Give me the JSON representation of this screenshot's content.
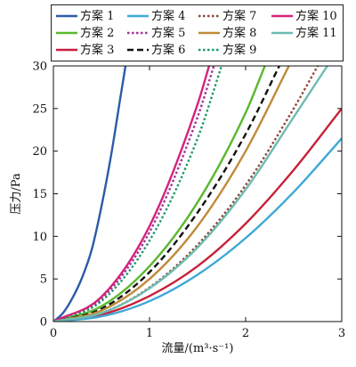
{
  "chart_data": {
    "type": "line",
    "xlabel": "流量/(m³·s⁻¹)",
    "ylabel": "压力/Pa",
    "xlim": [
      0,
      3
    ],
    "ylim": [
      0,
      30
    ],
    "xticks": [
      "0",
      "1",
      "2",
      "3"
    ],
    "yticks": [
      "0",
      "5",
      "10",
      "15",
      "20",
      "25",
      "30"
    ],
    "grid": false,
    "legend_position": "top",
    "series": [
      {
        "name": "方案 1",
        "color": "#2a5ca8",
        "dash": "solid",
        "x": [
          0,
          0.1,
          0.2,
          0.3,
          0.4,
          0.5,
          0.6,
          0.7,
          0.75
        ],
        "y": [
          0,
          1.0,
          2.8,
          5.2,
          8.5,
          13.5,
          19.5,
          26.5,
          30
        ]
      },
      {
        "name": "方案 2",
        "color": "#5ab82e",
        "dash": "solid",
        "x": [
          0,
          0.5,
          1.0,
          1.5,
          2.0,
          2.2
        ],
        "y": [
          0,
          1.8,
          6.5,
          14.0,
          24.5,
          30
        ]
      },
      {
        "name": "方案 3",
        "color": "#c8203a",
        "dash": "solid",
        "x": [
          0,
          0.5,
          1.0,
          1.5,
          2.0,
          2.5,
          3.0
        ],
        "y": [
          0,
          0.8,
          3.0,
          6.5,
          11.5,
          17.8,
          25.0
        ]
      },
      {
        "name": "方案 4",
        "color": "#3ea8d8",
        "dash": "solid",
        "x": [
          0,
          0.5,
          1.0,
          1.5,
          2.0,
          2.5,
          3.0
        ],
        "y": [
          0,
          0.6,
          2.4,
          5.5,
          9.8,
          15.2,
          21.5
        ]
      },
      {
        "name": "方案 5",
        "color": "#a3329a",
        "dash": "dotted",
        "x": [
          0,
          0.5,
          1.0,
          1.5,
          1.67
        ],
        "y": [
          0,
          2.7,
          10.5,
          24.0,
          30
        ]
      },
      {
        "name": "方案 6",
        "color": "#111111",
        "dash": "dashed",
        "x": [
          0,
          0.5,
          1.0,
          1.5,
          2.0,
          2.35
        ],
        "y": [
          0,
          1.5,
          5.8,
          12.8,
          22.0,
          30
        ]
      },
      {
        "name": "方案 7",
        "color": "#8b4a3a",
        "dash": "dotted",
        "x": [
          0,
          0.5,
          1.0,
          1.5,
          2.0,
          2.5,
          2.75
        ],
        "y": [
          0,
          1.0,
          4.0,
          9.0,
          16.0,
          25.0,
          30
        ]
      },
      {
        "name": "方案 8",
        "color": "#c08a3a",
        "dash": "solid",
        "x": [
          0,
          0.5,
          1.0,
          1.5,
          2.0,
          2.45
        ],
        "y": [
          0,
          1.3,
          5.0,
          11.2,
          20.0,
          30
        ]
      },
      {
        "name": "方案 9",
        "color": "#1f9a6a",
        "dash": "dotted",
        "x": [
          0,
          0.5,
          1.0,
          1.5,
          1.75
        ],
        "y": [
          0,
          2.4,
          9.5,
          21.5,
          30
        ]
      },
      {
        "name": "方案 10",
        "color": "#d4237a",
        "dash": "solid",
        "x": [
          0,
          0.5,
          1.0,
          1.5,
          1.62
        ],
        "y": [
          0,
          2.9,
          11.2,
          25.5,
          30
        ]
      },
      {
        "name": "方案 11",
        "color": "#6cbcb0",
        "dash": "solid",
        "x": [
          0,
          0.5,
          1.0,
          1.5,
          2.0,
          2.5,
          2.85
        ],
        "y": [
          0,
          1.0,
          3.9,
          8.7,
          15.5,
          24.0,
          30
        ]
      }
    ],
    "legend_columns": [
      [
        "方案 1",
        "方案 2",
        "方案 3"
      ],
      [
        "方案 4",
        "方案 5",
        "方案 6"
      ],
      [
        "方案 7",
        "方案 8",
        "方案 9"
      ],
      [
        "方案 10",
        "方案 11"
      ]
    ]
  }
}
